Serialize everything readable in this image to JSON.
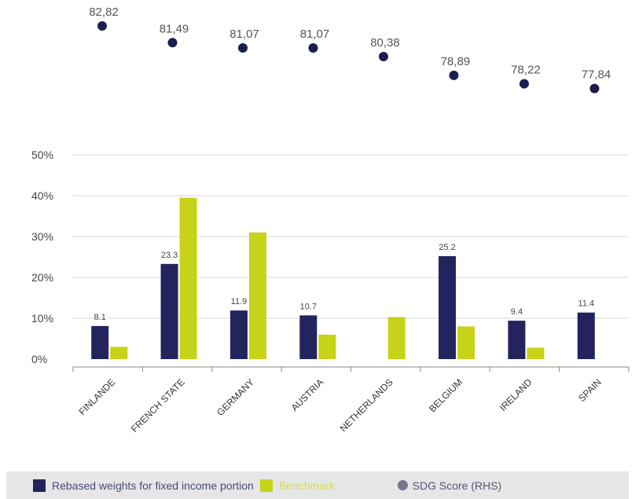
{
  "chart_data": {
    "type": "bar",
    "categories": [
      "FINLANDE",
      "FRENCH STATE",
      "GERMANY",
      "AUSTRIA",
      "NETHERLANDS",
      "BELGIUM",
      "IRELAND",
      "SPAIN"
    ],
    "series": [
      {
        "name": "Rebased weights for fixed income portion",
        "values": [
          8.1,
          23.3,
          11.9,
          10.7,
          null,
          25.2,
          9.4,
          11.4
        ],
        "labels": [
          "8.1",
          "23.3",
          "11.9",
          "10.7",
          "",
          "25.2",
          "9.4",
          "11.4"
        ],
        "color": "#23245e"
      },
      {
        "name": "Benchmark",
        "values": [
          3,
          39.5,
          31,
          6,
          10.3,
          8,
          2.8,
          null
        ],
        "color": "#c6d318"
      }
    ],
    "scores": {
      "name": "SDG Score (RHS)",
      "values": [
        82.82,
        81.49,
        81.07,
        81.07,
        80.38,
        78.89,
        78.22,
        77.84
      ],
      "labels": [
        "82,82",
        "81,49",
        "81,07",
        "81,07",
        "80,38",
        "78,89",
        "78,22",
        "77,84"
      ],
      "color": "#1c1d4f"
    },
    "ylim": [
      0,
      50
    ],
    "yticks": [
      "0%",
      "10%",
      "20%",
      "30%",
      "40%",
      "50%"
    ],
    "yticks_values": [
      0,
      10,
      20,
      30,
      40,
      50
    ],
    "grid": true,
    "legend_position": "bottom"
  },
  "legend": {
    "series1": "Rebased weights for fixed income portion",
    "series2": "Benchmark",
    "scores": "SDG Score (RHS)",
    "colors": {
      "series1": "#23245e",
      "series2": "#c6d318",
      "scores": "#77778f"
    }
  }
}
